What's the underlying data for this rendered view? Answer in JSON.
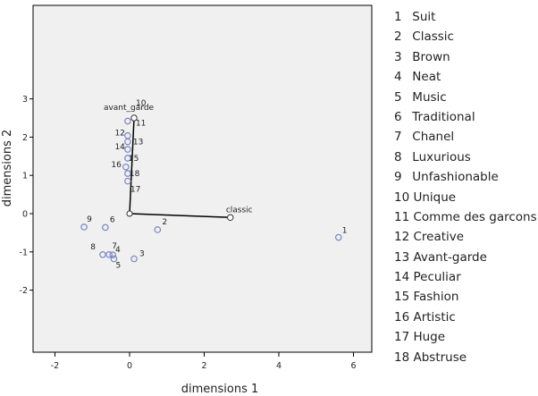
{
  "chart_data": {
    "type": "scatter",
    "xlabel": "dimensions 1",
    "ylabel": "dimensions 2",
    "xlim": [
      -2.4,
      6.6
    ],
    "ylim": [
      -3.5,
      4.0
    ],
    "xticks": [
      -2,
      0,
      2,
      4,
      6
    ],
    "yticks": [
      -2,
      -1,
      0,
      1,
      2,
      3
    ],
    "grid": false,
    "legend_placement": "right",
    "colors": {
      "points": "#7a86c2",
      "plot_background": "#f0f0f0",
      "vectors": "#000000"
    },
    "points": [
      {
        "label": "1",
        "x": 5.6,
        "y": -0.62
      },
      {
        "label": "2",
        "x": 0.75,
        "y": -0.42
      },
      {
        "label": "3",
        "x": 0.12,
        "y": -1.18
      },
      {
        "label": "4",
        "x": -0.55,
        "y": -1.07
      },
      {
        "label": "5",
        "x": -0.42,
        "y": -1.18
      },
      {
        "label": "6",
        "x": -0.65,
        "y": -0.36
      },
      {
        "label": "7",
        "x": -0.45,
        "y": -1.08
      },
      {
        "label": "8",
        "x": -0.72,
        "y": -1.07
      },
      {
        "label": "9",
        "x": -1.22,
        "y": -0.35
      },
      {
        "label": "10",
        "x": 0.12,
        "y": 2.5
      },
      {
        "label": "11",
        "x": -0.05,
        "y": 2.42
      },
      {
        "label": "12",
        "x": -0.05,
        "y": 2.04
      },
      {
        "label": "13",
        "x": -0.05,
        "y": 1.88
      },
      {
        "label": "14",
        "x": -0.05,
        "y": 1.68
      },
      {
        "label": "15",
        "x": -0.05,
        "y": 1.45
      },
      {
        "label": "16",
        "x": -0.1,
        "y": 1.22
      },
      {
        "label": "17",
        "x": -0.05,
        "y": 0.85
      },
      {
        "label": "18",
        "x": -0.05,
        "y": 1.05
      }
    ],
    "vectors": [
      {
        "label": "avant_garde",
        "x": 0.12,
        "y": 2.5
      },
      {
        "label": "classic",
        "x": 2.7,
        "y": -0.1
      }
    ],
    "legend": [
      {
        "num": "1",
        "name": "Suit"
      },
      {
        "num": "2",
        "name": "Classic"
      },
      {
        "num": "3",
        "name": "Brown"
      },
      {
        "num": "4",
        "name": "Neat"
      },
      {
        "num": "5",
        "name": "Music"
      },
      {
        "num": "6",
        "name": "Traditional"
      },
      {
        "num": "7",
        "name": "Chanel"
      },
      {
        "num": "8",
        "name": "Luxurious"
      },
      {
        "num": "9",
        "name": "Unfashionable"
      },
      {
        "num": "10",
        "name": "Unique"
      },
      {
        "num": "11",
        "name": "Comme des garcons"
      },
      {
        "num": "12",
        "name": "Creative"
      },
      {
        "num": "13",
        "name": "Avant-garde"
      },
      {
        "num": "14",
        "name": "Peculiar"
      },
      {
        "num": "15",
        "name": "Fashion"
      },
      {
        "num": "16",
        "name": "Artistic"
      },
      {
        "num": "17",
        "name": "Huge"
      },
      {
        "num": "18",
        "name": "Abstruse"
      }
    ]
  }
}
